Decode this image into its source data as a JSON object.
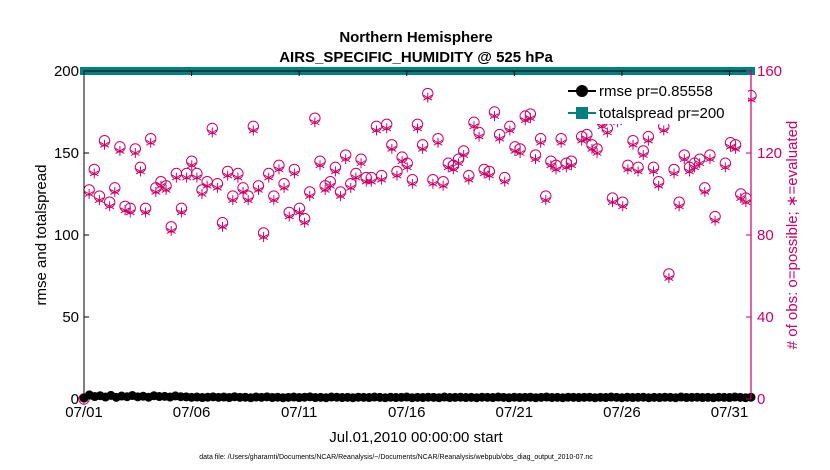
{
  "chart_data": {
    "type": "scatter",
    "title": "Northern Hemisphere",
    "subtitle": "AIRS_SPECIFIC_HUMIDITY @ 525 hPa",
    "xlabel": "Jul.01,2010 00:00:00 start",
    "ylabel_left": "rmse and totalspread",
    "ylabel_right": "# of obs: o=possible; ∗=evaluated",
    "footnote": "data file: /Users/gharamti/Documents/NCAR/Reanalysis/~/Documents/NCAR/Reanalysis/webpub/obs_diag_output_2010-07.nc",
    "x_ticks": [
      {
        "label": "07/01",
        "day": 1
      },
      {
        "label": "07/06",
        "day": 6
      },
      {
        "label": "07/11",
        "day": 11
      },
      {
        "label": "07/16",
        "day": 16
      },
      {
        "label": "07/21",
        "day": 21
      },
      {
        "label": "07/26",
        "day": 26
      },
      {
        "label": "07/31",
        "day": 31
      }
    ],
    "xlim": [
      1,
      32
    ],
    "ylim_left": [
      0,
      200
    ],
    "ylim_right": [
      0,
      160
    ],
    "yticks_left": [
      "0",
      "50",
      "100",
      "150",
      "200"
    ],
    "yticks_right": [
      "0",
      "40",
      "80",
      "120",
      "160"
    ],
    "legend": [
      "rmse pr=0.85558",
      "totalspread pr=200"
    ],
    "colors": {
      "rmse": "#000000",
      "totalspread": "#008080",
      "obs": "#cc0066",
      "axis_right": "#cc0066"
    },
    "series": [
      {
        "name": "rmse",
        "axis": "left",
        "values": [
          0.6,
          2.5,
          1.5,
          2.0,
          1.2,
          2.2,
          1.0,
          1.8,
          1.4,
          2.1,
          1.3,
          1.7,
          1.1,
          2.0,
          1.5,
          1.6,
          1.2,
          1.9,
          1.4,
          1.3,
          1.0,
          1.2,
          0.9,
          1.1,
          1.3,
          1.0,
          1.2,
          0.9,
          1.4,
          1.0,
          1.1,
          0.8,
          1.2,
          1.0,
          1.3,
          0.9,
          1.1,
          0.8,
          1.0,
          1.2,
          0.9,
          1.1,
          1.3,
          0.9,
          1.0,
          0.8,
          1.2,
          1.1,
          0.9,
          1.0,
          0.8,
          1.1,
          1.0,
          0.9,
          1.2,
          1.0,
          0.8,
          1.1,
          0.9,
          1.0,
          1.2,
          0.8,
          1.0,
          0.9,
          1.1,
          1.0,
          0.8,
          1.2,
          0.9,
          1.0,
          1.1,
          0.9,
          1.0,
          0.8,
          1.1,
          1.0,
          0.9,
          1.2,
          1.0,
          0.8,
          1.1,
          0.9,
          1.0,
          1.1,
          0.8,
          1.0,
          1.2,
          0.9,
          1.0,
          0.8,
          1.1,
          1.0,
          0.9,
          1.0,
          1.1,
          0.8,
          1.0,
          0.9,
          1.2,
          1.0,
          0.8,
          1.1,
          0.9,
          1.0,
          1.1,
          0.8,
          1.0,
          0.9,
          1.1,
          1.0,
          0.8,
          1.2,
          0.9,
          1.0,
          1.1,
          0.9,
          1.0,
          0.8,
          1.1,
          1.0,
          0.9,
          1.2,
          1.0,
          0.8,
          1.1
        ]
      },
      {
        "name": "totalspread",
        "axis": "left",
        "values": [
          200,
          200,
          200,
          200,
          200,
          200,
          200,
          200,
          200,
          200,
          200,
          200,
          200,
          200,
          200,
          200,
          200,
          200,
          200,
          200,
          200,
          200,
          200,
          200,
          200,
          200,
          200,
          200,
          200,
          200,
          200,
          200,
          200,
          200,
          200,
          200,
          200,
          200,
          200,
          200,
          200,
          200,
          200,
          200,
          200,
          200,
          200,
          200,
          200,
          200,
          200,
          200,
          200,
          200,
          200,
          200,
          200,
          200,
          200,
          200,
          200,
          200,
          200,
          200,
          200,
          200,
          200,
          200,
          200,
          200,
          200,
          200,
          200,
          200,
          200,
          200,
          200,
          200,
          200,
          200,
          200,
          200,
          200,
          200,
          200,
          200,
          200,
          200,
          200,
          200,
          200,
          200,
          200,
          200,
          200,
          200,
          200,
          200,
          200,
          200,
          200,
          200,
          200,
          200,
          200,
          200,
          200,
          200,
          200,
          200,
          200,
          200,
          200,
          200,
          200,
          200,
          200,
          200,
          200,
          200,
          200,
          200,
          200,
          200,
          200
        ]
      },
      {
        "name": "obs_possible",
        "axis": "right",
        "values": [
          0,
          102,
          112,
          99,
          126,
          96,
          103,
          123,
          94,
          93,
          122,
          113,
          93,
          127,
          103,
          106,
          104,
          84,
          110,
          93,
          110,
          116,
          110,
          102,
          106,
          132,
          105,
          86,
          111,
          99,
          110,
          103,
          99,
          133,
          104,
          81,
          110,
          99,
          114,
          105,
          91,
          112,
          93,
          88,
          101,
          137,
          116,
          104,
          106,
          113,
          101,
          119,
          105,
          110,
          117,
          108,
          108,
          133,
          109,
          134,
          124,
          111,
          118,
          115,
          107,
          134,
          124,
          149,
          107,
          127,
          106,
          115,
          114,
          117,
          121,
          109,
          135,
          130,
          112,
          111,
          140,
          129,
          108,
          133,
          123,
          122,
          138,
          139,
          119,
          127,
          99,
          116,
          114,
          127,
          115,
          116,
          148,
          128,
          129,
          124,
          122,
          135,
          132,
          98,
          137,
          96,
          114,
          126,
          113,
          121,
          128,
          113,
          106,
          133,
          61,
          112,
          96,
          119,
          113,
          115,
          117,
          103,
          119,
          89,
          141,
          115,
          125,
          124,
          100,
          98,
          148
        ]
      },
      {
        "name": "obs_evaluated",
        "axis": "right",
        "values": [
          0,
          100,
          110,
          97,
          124,
          94,
          101,
          121,
          92,
          91,
          120,
          111,
          91,
          125,
          101,
          104,
          102,
          82,
          108,
          91,
          108,
          114,
          108,
          100,
          104,
          130,
          103,
          84,
          109,
          97,
          108,
          101,
          97,
          131,
          102,
          79,
          108,
          97,
          112,
          103,
          89,
          110,
          91,
          86,
          99,
          135,
          114,
          102,
          104,
          111,
          99,
          117,
          103,
          108,
          115,
          106,
          106,
          131,
          107,
          132,
          122,
          109,
          116,
          113,
          105,
          132,
          122,
          147,
          105,
          125,
          104,
          113,
          112,
          115,
          119,
          107,
          133,
          128,
          110,
          109,
          138,
          127,
          106,
          131,
          121,
          120,
          136,
          137,
          117,
          125,
          97,
          114,
          112,
          125,
          113,
          114,
          146,
          126,
          127,
          122,
          120,
          133,
          130,
          96,
          135,
          94,
          112,
          124,
          111,
          119,
          126,
          111,
          104,
          131,
          59,
          110,
          94,
          117,
          111,
          113,
          115,
          101,
          117,
          87,
          139,
          113,
          123,
          122,
          98,
          96,
          146
        ]
      }
    ]
  }
}
